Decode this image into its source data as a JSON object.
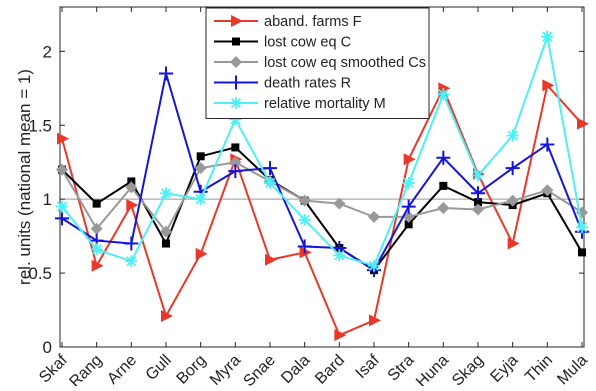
{
  "chart_data": {
    "type": "line",
    "title": "",
    "xlabel": "",
    "ylabel": "rel. units (national mean = 1)",
    "ylim": [
      0,
      2.3
    ],
    "yticks": [
      0,
      0.5,
      1,
      1.5,
      2
    ],
    "ytick_labels": [
      "0",
      "0.5",
      "1",
      "1.5",
      "2"
    ],
    "grid": false,
    "reference_line": {
      "y": 1,
      "color": "#999999"
    },
    "legend_position": "top-center",
    "categories": [
      "Skaf",
      "Rang",
      "Arne",
      "Gull",
      "Borg",
      "Myra",
      "Snae",
      "Dala",
      "Bard",
      "Isaf",
      "Stra",
      "Huna",
      "Skag",
      "Eyja",
      "Thin",
      "Mula"
    ],
    "series": [
      {
        "name": "aband. farms F",
        "color": "#e8382a",
        "marker": "triangle-right",
        "values": [
          1.41,
          0.55,
          0.96,
          0.21,
          0.63,
          1.27,
          0.59,
          0.64,
          0.08,
          0.18,
          1.27,
          1.75,
          1.17,
          0.7,
          1.77,
          1.51
        ]
      },
      {
        "name": "lost cow eq C",
        "color": "#000000",
        "marker": "square",
        "values": [
          1.2,
          0.97,
          1.12,
          0.7,
          1.29,
          1.35,
          1.13,
          0.99,
          0.67,
          0.52,
          0.83,
          1.09,
          0.98,
          0.96,
          1.04,
          0.64
        ]
      },
      {
        "name": "lost cow eq smoothed Cs",
        "color": "#999999",
        "marker": "diamond",
        "values": [
          1.2,
          0.8,
          1.08,
          0.78,
          1.21,
          1.25,
          1.12,
          0.99,
          0.97,
          0.88,
          0.88,
          0.94,
          0.93,
          0.99,
          1.06,
          0.91
        ]
      },
      {
        "name": "death rates R",
        "color": "#1515d8",
        "marker": "plus",
        "values": [
          0.87,
          0.72,
          0.7,
          1.85,
          1.05,
          1.19,
          1.21,
          0.68,
          0.67,
          0.52,
          0.95,
          1.28,
          1.04,
          1.21,
          1.37,
          0.78
        ]
      },
      {
        "name": "relative mortality M",
        "color": "#4ef0f5",
        "marker": "asterisk",
        "values": [
          0.95,
          0.66,
          0.58,
          1.04,
          1.0,
          1.54,
          1.11,
          0.86,
          0.62,
          0.55,
          1.11,
          1.71,
          1.16,
          1.43,
          2.1,
          0.81
        ]
      }
    ]
  }
}
